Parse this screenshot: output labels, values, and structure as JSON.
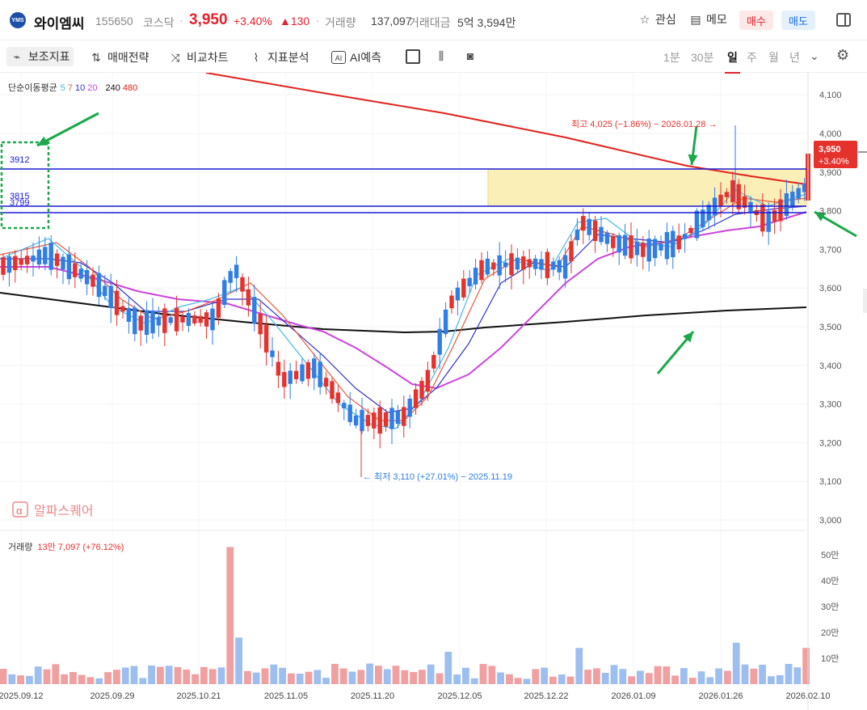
{
  "header": {
    "logo_text": "YMS",
    "name": "와이엠씨",
    "code": "155650",
    "market": "코스닥",
    "price": "3,950",
    "change_pct": "+3.40%",
    "change_abs": "▲130",
    "volume_label": "거래량",
    "volume_value": "137,097",
    "amount_label": "거래대금",
    "amount_value": "5억 3,594만",
    "watch_label": "관심",
    "memo_label": "메모",
    "buy_label": "매수",
    "sell_label": "매도"
  },
  "toolbar": {
    "indicators": "보조지표",
    "strategy": "매매전략",
    "compare": "비교차트",
    "analysis": "지표분석",
    "ai": "AI예측",
    "timeframes": [
      "1분",
      "30분",
      "일",
      "주",
      "월",
      "년"
    ],
    "selected_timeframe": "일"
  },
  "chart": {
    "ma_label": "단순이동평균",
    "ma_values": [
      "5",
      "7",
      "10",
      "20",
      "240",
      "480"
    ],
    "high_annotation": "최고 4,025 (−1.86%) − 2026.01.28 →",
    "low_annotation": "← 최저 3,110 (+27.01%) − 2025.11.19",
    "price_tag": "3,950",
    "price_tag_pct": "+3.40%",
    "level_3912": "3912",
    "level_3815": "3815",
    "level_3799": "3799",
    "watermark": "알파스퀘어",
    "volume_label": "거래량",
    "volume_value": "13만 7,097 (+76.12%)",
    "price_ticks": [
      "4,100",
      "4,000",
      "3,900",
      "3,800",
      "3,700",
      "3,600",
      "3,500",
      "3,400",
      "3,300",
      "3,200",
      "3,100",
      "3,000"
    ],
    "volume_ticks": [
      "50만",
      "40만",
      "30만",
      "20만",
      "10만"
    ],
    "date_ticks": [
      "2025.09.12",
      "2025.09.29",
      "2025.10.21",
      "2025.11.05",
      "2025.11.20",
      "2025.12.05",
      "2025.12.22",
      "2026.01.09",
      "2026.01.26",
      "2026.02.10"
    ],
    "colors": {
      "up": "#e5322d",
      "down": "#2f7ee6",
      "ma240": "#e3221c",
      "ma480": "#111111",
      "ma20": "#cc44dd",
      "ma10": "#3333cc",
      "ma7": "#e55a3a",
      "ma5": "#44b8e8",
      "zone": "#fbefb8",
      "level": "#1a1ad6",
      "arrow": "#1aa84a"
    }
  }
}
